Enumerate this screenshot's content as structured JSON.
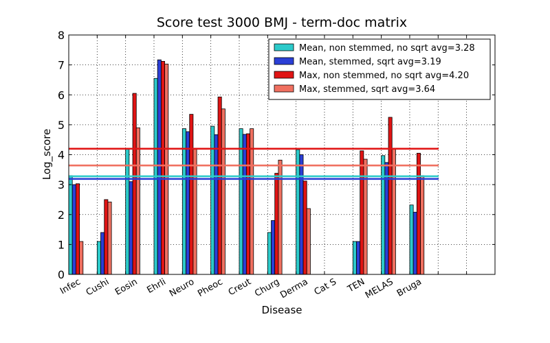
{
  "chart_data": {
    "type": "bar",
    "title": "Score test 3000 BMJ - term-doc matrix",
    "xlabel": "Disease",
    "ylabel": "Log_score",
    "ylim": [
      0,
      8
    ],
    "yticks": [
      "0",
      "1",
      "2",
      "3",
      "4",
      "5",
      "6",
      "7",
      "8"
    ],
    "grid": true,
    "legend_position": "top-right",
    "categories": [
      "Infec",
      "Cushi",
      "Eosin",
      "Ehrli",
      "Neuro",
      "Pheoc",
      "Creut",
      "Churg",
      "Derma",
      "Cat S",
      "TEN",
      "MELAS",
      "Bruga"
    ],
    "series": [
      {
        "name": "Mean, non stemmed, no sqrt avg=3.28",
        "color": "#2ccaca",
        "avg": 3.28,
        "values": [
          3.3,
          1.1,
          4.2,
          6.55,
          4.87,
          4.95,
          4.87,
          1.4,
          4.17,
          0,
          1.1,
          3.97,
          2.32
        ]
      },
      {
        "name": "Mean, stemmed, sqrt avg=3.19",
        "color": "#2b3fd6",
        "avg": 3.19,
        "values": [
          3.0,
          1.4,
          3.1,
          7.17,
          4.77,
          4.67,
          4.68,
          1.8,
          4.0,
          0,
          1.1,
          3.74,
          2.08
        ]
      },
      {
        "name": "Max, non stemmed, no sqrt avg=4.20",
        "color": "#e01414",
        "avg": 4.2,
        "values": [
          3.03,
          2.5,
          6.05,
          7.12,
          5.35,
          5.93,
          4.7,
          3.38,
          3.12,
          0,
          4.13,
          5.25,
          4.05
        ]
      },
      {
        "name": "Max, stemmed, sqrt avg=3.64",
        "color": "#f07060",
        "avg": 3.64,
        "values": [
          1.1,
          2.42,
          4.9,
          7.03,
          4.22,
          5.53,
          4.87,
          3.82,
          2.2,
          0,
          3.85,
          4.22,
          3.3
        ]
      }
    ]
  }
}
